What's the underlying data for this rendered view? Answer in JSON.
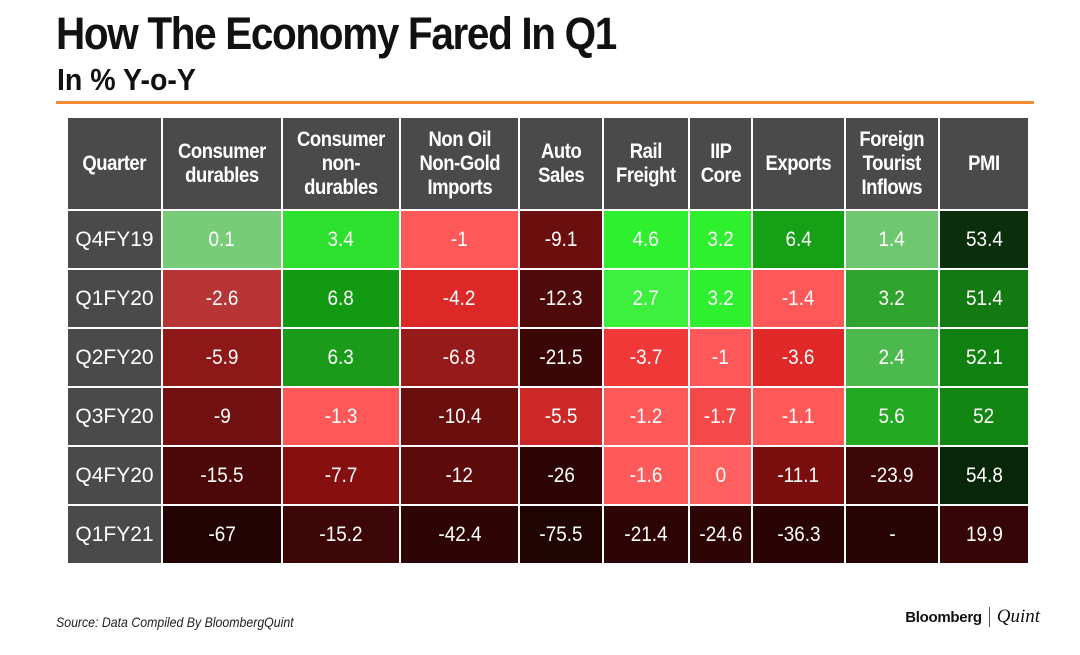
{
  "title": "How The Economy Fared In Q1",
  "subtitle": "In % Y-o-Y",
  "source": "Source: Data Compiled By BloombergQuint",
  "brand": {
    "primary": "Bloomberg",
    "secondary": "Quint"
  },
  "colors": {
    "accent_rule": "#f08a35",
    "header_bg": "#4a4a4a",
    "positive_light": "#7ed37e",
    "positive_bright": "#2ef02e",
    "positive_dark": "#0a2f0a",
    "negative_light": "#ff5b5b",
    "negative_dark": "#2a0606"
  },
  "chart_data": {
    "type": "table",
    "title": "How The Economy Fared In Q1",
    "subtitle": "In % Y-o-Y",
    "columns": [
      "Quarter",
      "Consumer\ndurables",
      "Consumer\nnon-\ndurables",
      "Non Oil\nNon-Gold\nImports",
      "Auto\nSales",
      "Rail\nFreight",
      "IIP\nCore",
      "Exports",
      "Foreign\nTourist\nInflows",
      "PMI"
    ],
    "rows": [
      {
        "quarter": "Q4FY19",
        "values": [
          "0.1",
          "3.4",
          "-1",
          "-9.1",
          "4.6",
          "3.2",
          "6.4",
          "1.4",
          "53.4"
        ],
        "colors": [
          "#78cc78",
          "#2ee02e",
          "#ff5858",
          "#6a0e0e",
          "#2ef02e",
          "#2ef02e",
          "#16a016",
          "#6fc86f",
          "#0a2f0a"
        ]
      },
      {
        "quarter": "Q1FY20",
        "values": [
          "-2.6",
          "6.8",
          "-4.2",
          "-12.3",
          "2.7",
          "3.2",
          "-1.4",
          "3.2",
          "51.4"
        ],
        "colors": [
          "#b83535",
          "#139a13",
          "#dd2828",
          "#4e0909",
          "#3ef03e",
          "#2ef02e",
          "#ff5858",
          "#2fa52f",
          "#137a13"
        ]
      },
      {
        "quarter": "Q2FY20",
        "values": [
          "-5.9",
          "6.3",
          "-6.8",
          "-21.5",
          "-3.7",
          "-1",
          "-3.6",
          "2.4",
          "52.1"
        ],
        "colors": [
          "#8e1818",
          "#1a9c1a",
          "#961a1a",
          "#3a0606",
          "#f03838",
          "#ff5858",
          "#e02828",
          "#4cb94c",
          "#108010"
        ]
      },
      {
        "quarter": "Q3FY20",
        "values": [
          "-9",
          "-1.3",
          "-10.4",
          "-5.5",
          "-1.2",
          "-1.7",
          "-1.1",
          "5.6",
          "52"
        ],
        "colors": [
          "#701010",
          "#ff5858",
          "#6a0e0e",
          "#cc2828",
          "#ff5858",
          "#f54848",
          "#ff5858",
          "#22aa22",
          "#138513"
        ]
      },
      {
        "quarter": "Q4FY20",
        "values": [
          "-15.5",
          "-7.7",
          "-12",
          "-26",
          "-1.6",
          "0",
          "-11.1",
          "-23.9",
          "54.8"
        ],
        "colors": [
          "#4c0808",
          "#880f0f",
          "#5c0a0a",
          "#2e0505",
          "#ff5a5a",
          "#ff6060",
          "#7a0e0e",
          "#3e0707",
          "#082608"
        ]
      },
      {
        "quarter": "Q1FY21",
        "values": [
          "-67",
          "-15.2",
          "-42.4",
          "-75.5",
          "-21.4",
          "-24.6",
          "-36.3",
          "-",
          "19.9"
        ],
        "colors": [
          "#230404",
          "#3e0707",
          "#2e0505",
          "#200303",
          "#2e0505",
          "#2e0505",
          "#280404",
          "#260404",
          "#360606"
        ]
      }
    ]
  }
}
